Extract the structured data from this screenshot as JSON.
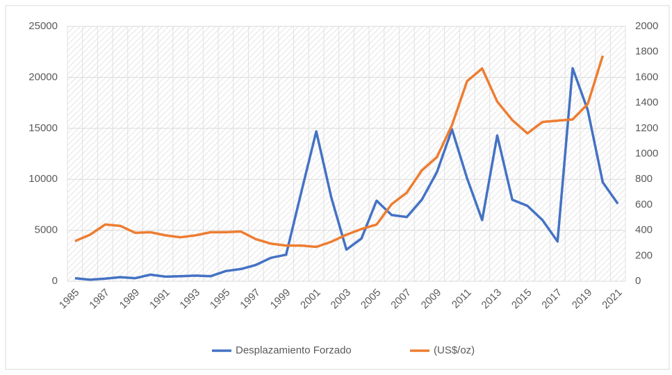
{
  "chart_data": {
    "type": "line",
    "categories": [
      "1985",
      null,
      "1987",
      null,
      "1989",
      null,
      "1991",
      null,
      "1993",
      null,
      "1995",
      null,
      "1997",
      null,
      "1999",
      null,
      "2001",
      null,
      "2003",
      null,
      "2005",
      null,
      "2007",
      null,
      "2009",
      null,
      "2011",
      null,
      "2013",
      null,
      "2015",
      null,
      "2017",
      null,
      "2019",
      null,
      "2021"
    ],
    "series": [
      {
        "name": "Desplazamiento Forzado",
        "color": "#4472c4",
        "axis": "y",
        "values": [
          300,
          150,
          250,
          400,
          300,
          650,
          450,
          500,
          550,
          500,
          1000,
          1200,
          1600,
          2300,
          2600,
          8700,
          14700,
          8200,
          3100,
          4200,
          7900,
          6500,
          6300,
          8000,
          10700,
          14900,
          10100,
          6000,
          14300,
          8000,
          7400,
          6000,
          3900,
          20900,
          16800,
          9700,
          7600
        ]
      },
      {
        "name": "(US$/oz)",
        "color": "#ed7d31",
        "axis": "y2",
        "values": [
          315,
          365,
          445,
          435,
          380,
          385,
          360,
          345,
          360,
          385,
          385,
          390,
          330,
          295,
          280,
          280,
          270,
          310,
          365,
          410,
          445,
          605,
          695,
          870,
          975,
          1225,
          1570,
          1670,
          1410,
          1265,
          1160,
          1250,
          1260,
          1270,
          1390,
          1770,
          null
        ]
      }
    ],
    "ylim": [
      0,
      25000
    ],
    "yticks": [
      0,
      5000,
      10000,
      15000,
      20000,
      25000
    ],
    "y2lim": [
      0,
      2000
    ],
    "y2ticks": [
      0,
      200,
      400,
      600,
      800,
      1000,
      1200,
      1400,
      1600,
      1800,
      2000
    ],
    "grid": true,
    "legend": "bottom"
  }
}
